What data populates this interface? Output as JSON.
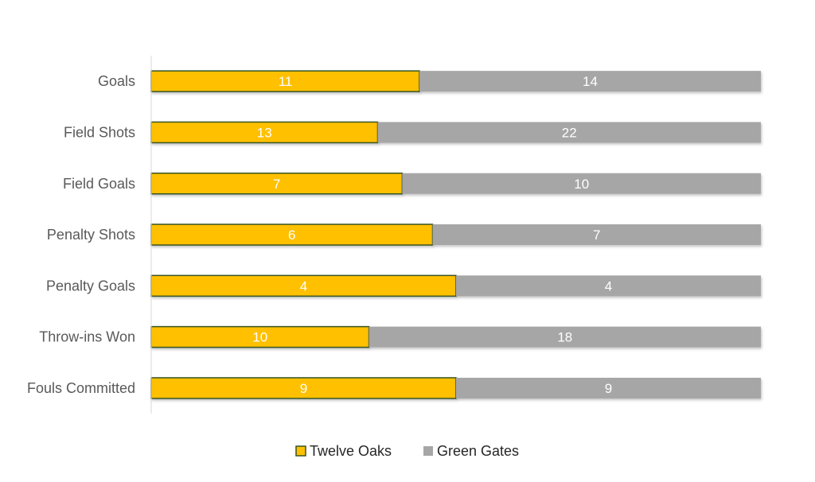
{
  "chart_data": {
    "type": "bar",
    "orientation": "horizontal",
    "stacking": "percent",
    "categories": [
      "Goals",
      "Field Shots",
      "Field Goals",
      "Penalty Shots",
      "Penalty Goals",
      "Throw-ins Won",
      "Fouls Committed"
    ],
    "series": [
      {
        "name": "Twelve Oaks",
        "values": [
          11,
          13,
          7,
          6,
          4,
          10,
          9
        ],
        "color": "#FFC000",
        "border": "#375623"
      },
      {
        "name": "Green Gates",
        "values": [
          14,
          22,
          10,
          7,
          4,
          18,
          9
        ],
        "color": "#A6A6A6"
      }
    ],
    "data_labels": true,
    "grid": false,
    "legend_position": "bottom",
    "label_color": "#ffffff",
    "axis_color": "#D9D9D9",
    "category_label_color": "#595959"
  }
}
